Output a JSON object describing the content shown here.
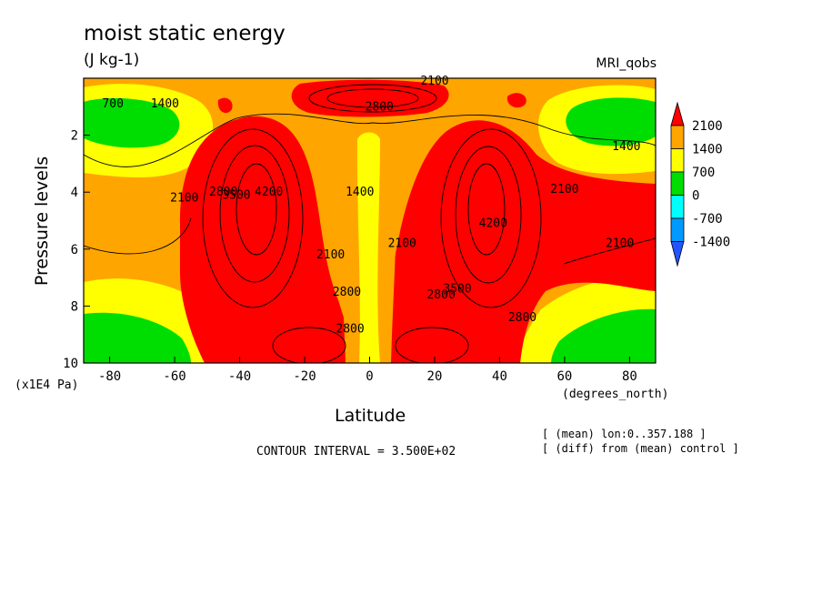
{
  "chart_data": {
    "type": "heatmap",
    "title": "moist static energy",
    "subtitle": "(J kg-1)",
    "dataset_label": "MRI_qobs",
    "xlabel": "Latitude",
    "x_units": "(degrees_north)",
    "ylabel": "Pressure levels",
    "y_units": "(x1E4 Pa)",
    "xlim": [
      -88,
      88
    ],
    "ylim": [
      10,
      0
    ],
    "x_ticks": [
      -80,
      -60,
      -40,
      -20,
      0,
      20,
      40,
      60,
      80
    ],
    "y_ticks": [
      2,
      4,
      6,
      8,
      10
    ],
    "contour_interval_text": "CONTOUR INTERVAL = 3.500E+02",
    "notes": [
      "[ (mean) lon:0..357.188 ]",
      "[ (diff) from (mean) control ]"
    ],
    "colorbar": {
      "levels": [
        2100,
        1400,
        700,
        0,
        -700,
        -1400
      ],
      "colors": {
        "gt2100": "#ff0000",
        "1400_2100": "#ffa500",
        "700_1400": "#ffff00",
        "0_700": "#00dd00",
        "neg700_0": "#00ffff",
        "neg1400_neg700": "#0099ff",
        "lt_neg1400": "#2255ff"
      }
    },
    "contour_labels": [
      {
        "text": "2100",
        "lat": 20,
        "p": 0.1
      },
      {
        "text": "2800",
        "lat": 3,
        "p": 1.0
      },
      {
        "text": "700",
        "lat": -79,
        "p": 0.9
      },
      {
        "text": "1400",
        "lat": -63,
        "p": 0.9
      },
      {
        "text": "1400",
        "lat": 79,
        "p": 2.4
      },
      {
        "text": "1400",
        "lat": -3,
        "p": 4.0
      },
      {
        "text": "2100",
        "lat": -57,
        "p": 4.2
      },
      {
        "text": "2800",
        "lat": -45,
        "p": 4.0
      },
      {
        "text": "3500",
        "lat": -41,
        "p": 4.1
      },
      {
        "text": "4200",
        "lat": -31,
        "p": 4.0
      },
      {
        "text": "2100",
        "lat": -12,
        "p": 6.2
      },
      {
        "text": "2100",
        "lat": 10,
        "p": 5.8
      },
      {
        "text": "2800",
        "lat": -7,
        "p": 7.5
      },
      {
        "text": "2800",
        "lat": 22,
        "p": 7.6
      },
      {
        "text": "3500",
        "lat": 27,
        "p": 7.4
      },
      {
        "text": "4200",
        "lat": 38,
        "p": 5.1
      },
      {
        "text": "2100",
        "lat": 60,
        "p": 3.9
      },
      {
        "text": "2100",
        "lat": 77,
        "p": 5.8
      },
      {
        "text": "2800",
        "lat": 47,
        "p": 8.4
      },
      {
        "text": "2800",
        "lat": -6,
        "p": 8.8
      }
    ]
  }
}
